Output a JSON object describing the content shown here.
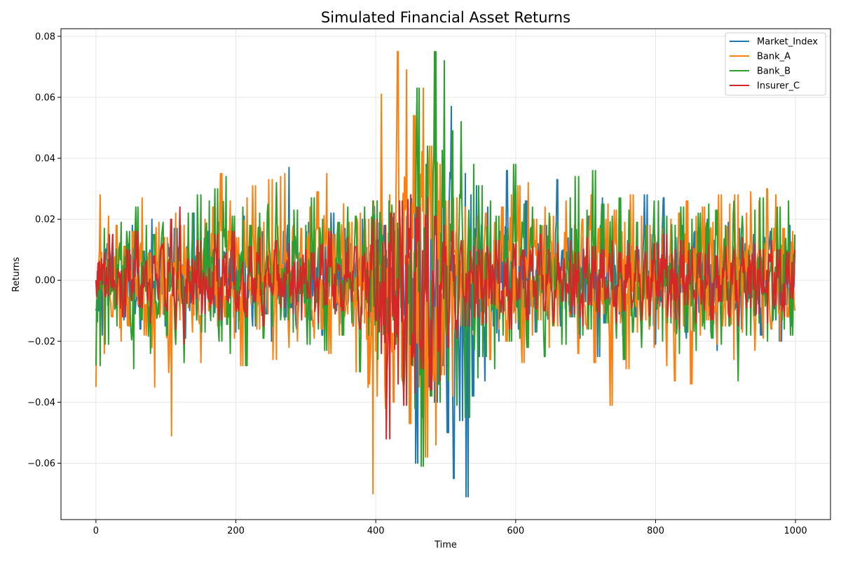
{
  "chart_data": {
    "type": "line",
    "title": "Simulated Financial Asset Returns",
    "xlabel": "Time",
    "ylabel": "Returns",
    "xlim": [
      -50,
      1050
    ],
    "ylim": [
      -0.0785,
      0.0825
    ],
    "xticks": [
      0,
      200,
      400,
      600,
      800,
      1000
    ],
    "xtick_labels": [
      "0",
      "200",
      "400",
      "600",
      "800",
      "1000"
    ],
    "yticks": [
      -0.06,
      -0.04,
      -0.02,
      0.0,
      0.02,
      0.04,
      0.06,
      0.08
    ],
    "ytick_labels": [
      "−0.06",
      "−0.04",
      "−0.02",
      "0.00",
      "0.02",
      "0.04",
      "0.06",
      "0.08"
    ],
    "grid": true,
    "legend_position": "top-right",
    "n_points": 1000,
    "series": [
      {
        "name": "Market_Index",
        "color": "#1f77b4",
        "x_start": 0,
        "x_end": 999,
        "values": [
          -0.01,
          0.006,
          -0.018,
          0.012,
          -0.004,
          0.015,
          -0.009,
          0.003,
          -0.013,
          0.01,
          -0.006,
          0.018,
          -0.011,
          0.004,
          -0.016,
          0.009,
          -0.003,
          0.02,
          -0.012,
          0.006,
          -0.007,
          0.014,
          -0.015,
          0.008,
          -0.002,
          0.017,
          -0.01,
          0.005,
          -0.019,
          0.011,
          -0.005,
          0.022,
          -0.013,
          0.003,
          -0.008,
          0.016,
          -0.012,
          0.007,
          -0.004,
          0.019,
          -0.014,
          0.009,
          -0.006,
          0.013,
          -0.017,
          0.005,
          -0.003,
          0.021,
          -0.01,
          0.008,
          -0.015,
          0.012,
          -0.007,
          0.018,
          -0.011,
          0.004,
          -0.02,
          0.01,
          -0.005,
          0.016,
          -0.012,
          0.037,
          -0.009,
          0.014,
          -0.016,
          0.006,
          -0.004,
          0.019,
          -0.013,
          0.008,
          -0.007,
          0.015,
          -0.018,
          0.011,
          -0.003,
          0.022,
          -0.01,
          0.005,
          -0.014,
          0.017,
          -0.008,
          0.012,
          -0.015,
          0.006,
          -0.011,
          0.02,
          -0.006,
          0.009,
          -0.017,
          0.013,
          -0.004,
          0.018,
          -0.012,
          0.007,
          -0.009,
          0.016,
          -0.014,
          0.01,
          -0.005,
          0.021,
          -0.019,
          0.03,
          -0.06,
          0.025,
          -0.045,
          0.038,
          -0.035,
          0.022,
          -0.04,
          0.031,
          -0.028,
          0.02,
          -0.05,
          0.057,
          -0.065,
          0.018,
          -0.046,
          0.035,
          -0.071,
          0.028,
          -0.038,
          0.031,
          -0.025,
          0.019,
          -0.033,
          0.024,
          -0.015,
          0.013,
          -0.02,
          0.016,
          -0.01,
          0.036,
          -0.012,
          0.009,
          -0.016,
          0.014,
          -0.008,
          0.026,
          -0.011,
          0.006,
          -0.017,
          0.012,
          -0.006,
          0.018,
          -0.013,
          0.009,
          -0.004,
          0.033,
          -0.015,
          0.01,
          -0.008,
          0.017,
          -0.012,
          0.005,
          -0.019,
          0.014,
          -0.007,
          0.021,
          -0.01,
          0.008,
          -0.025,
          0.027,
          -0.014,
          0.011,
          -0.006,
          0.016,
          -0.011,
          0.007,
          -0.018,
          0.013,
          -0.005,
          0.019,
          -0.012,
          0.01,
          -0.016,
          0.028,
          -0.009,
          0.015,
          -0.021,
          0.012,
          -0.007,
          0.027,
          -0.013,
          0.008,
          -0.017,
          0.014,
          -0.004,
          0.018,
          -0.019,
          0.011,
          -0.008,
          0.016,
          -0.015,
          0.009,
          -0.006,
          0.02,
          -0.012,
          0.013,
          -0.023,
          0.01,
          -0.005,
          0.019,
          -0.014,
          0.011,
          -0.009,
          0.017,
          -0.016,
          0.012,
          -0.007,
          0.015,
          -0.011,
          0.008,
          -0.018,
          0.014,
          -0.006,
          0.016,
          -0.013,
          0.01,
          -0.02,
          0.012,
          -0.008,
          0.018,
          -0.015,
          0.014
        ]
      },
      {
        "name": "Bank_A",
        "color": "#ff7f0e",
        "x_start": 0,
        "x_end": 999,
        "values": [
          -0.035,
          0.028,
          -0.024,
          0.021,
          -0.012,
          0.018,
          -0.02,
          0.011,
          -0.015,
          0.016,
          -0.008,
          0.027,
          -0.018,
          0.009,
          -0.035,
          0.019,
          -0.011,
          0.014,
          -0.051,
          0.022,
          -0.013,
          0.018,
          -0.009,
          0.03,
          -0.017,
          0.011,
          -0.027,
          0.02,
          -0.01,
          0.024,
          -0.015,
          0.035,
          -0.012,
          0.026,
          -0.019,
          0.014,
          -0.028,
          0.027,
          -0.008,
          0.031,
          -0.016,
          0.019,
          -0.011,
          0.033,
          -0.026,
          0.034,
          -0.014,
          0.035,
          -0.022,
          0.018,
          -0.02,
          0.017,
          -0.012,
          0.024,
          -0.019,
          0.029,
          -0.016,
          0.035,
          -0.024,
          0.015,
          -0.018,
          0.025,
          -0.011,
          0.019,
          -0.03,
          0.022,
          -0.014,
          0.02,
          -0.07,
          0.047,
          -0.038,
          0.061,
          -0.042,
          0.028,
          -0.04,
          0.075,
          -0.033,
          0.069,
          -0.047,
          0.054,
          -0.035,
          0.063,
          -0.058,
          0.044,
          -0.054,
          0.038,
          -0.031,
          0.026,
          -0.038,
          0.027,
          -0.015,
          0.024,
          -0.02,
          0.017,
          -0.018,
          0.021,
          -0.012,
          0.022,
          -0.026,
          0.019,
          -0.016,
          0.024,
          -0.02,
          0.028,
          -0.014,
          0.031,
          -0.027,
          0.032,
          -0.018,
          0.02,
          -0.013,
          0.024,
          -0.022,
          0.021,
          -0.015,
          0.017,
          -0.019,
          0.026,
          -0.012,
          0.018,
          -0.024,
          0.02,
          -0.016,
          0.028,
          -0.027,
          0.017,
          -0.011,
          0.025,
          -0.041,
          0.023,
          -0.014,
          0.019,
          -0.029,
          0.028,
          -0.017,
          0.021,
          -0.013,
          0.018,
          -0.022,
          0.027,
          -0.016,
          0.017,
          -0.028,
          0.02,
          -0.033,
          0.022,
          -0.015,
          0.026,
          -0.034,
          0.021,
          -0.018,
          0.024,
          -0.013,
          0.019,
          -0.021,
          0.028,
          -0.015,
          0.025,
          -0.026,
          0.028,
          -0.017,
          0.022,
          -0.014,
          0.029,
          -0.023,
          0.026,
          -0.019,
          0.03,
          -0.016,
          0.028,
          -0.02,
          0.017,
          -0.012,
          0.016,
          -0.01
        ]
      },
      {
        "name": "Bank_B",
        "color": "#2ca02c",
        "x_start": 0,
        "x_end": 999,
        "values": [
          -0.028,
          0.017,
          -0.021,
          0.012,
          -0.015,
          0.019,
          -0.01,
          0.016,
          -0.029,
          0.024,
          -0.013,
          0.018,
          -0.024,
          0.015,
          -0.011,
          0.019,
          -0.018,
          0.014,
          -0.021,
          0.018,
          -0.027,
          0.022,
          -0.013,
          0.028,
          -0.017,
          0.026,
          -0.012,
          0.03,
          -0.02,
          0.034,
          -0.024,
          0.021,
          -0.016,
          0.024,
          -0.028,
          0.018,
          -0.014,
          0.022,
          -0.019,
          0.025,
          -0.015,
          0.032,
          -0.013,
          0.02,
          -0.017,
          0.023,
          -0.012,
          0.018,
          -0.021,
          0.027,
          -0.016,
          0.02,
          -0.023,
          0.017,
          -0.011,
          0.019,
          -0.018,
          0.024,
          -0.014,
          0.021,
          -0.03,
          0.024,
          -0.018,
          0.026,
          -0.019,
          0.018,
          -0.015,
          0.022,
          -0.02,
          0.024,
          -0.036,
          0.021,
          -0.042,
          0.063,
          -0.061,
          0.044,
          -0.038,
          0.075,
          -0.04,
          0.072,
          -0.033,
          0.049,
          -0.041,
          0.052,
          -0.045,
          0.038,
          -0.032,
          0.031,
          -0.025,
          0.026,
          -0.029,
          0.021,
          -0.018,
          0.017,
          -0.02,
          0.038,
          -0.019,
          0.025,
          -0.022,
          0.024,
          -0.017,
          0.018,
          -0.025,
          0.022,
          -0.014,
          0.019,
          -0.021,
          0.027,
          -0.012,
          0.034,
          -0.018,
          0.023,
          -0.016,
          0.036,
          -0.022,
          0.025,
          -0.014,
          0.021,
          -0.019,
          0.027,
          -0.026,
          0.023,
          -0.017,
          0.019,
          -0.022,
          0.018,
          -0.015,
          0.026,
          -0.02,
          0.021,
          -0.014,
          0.018,
          -0.024,
          0.024,
          -0.017,
          0.02,
          -0.023,
          0.022,
          -0.016,
          0.025,
          -0.019,
          0.023,
          -0.021,
          0.018,
          -0.015,
          0.026,
          -0.033,
          0.021,
          -0.018,
          0.023,
          -0.014,
          0.027,
          -0.02,
          0.017,
          -0.012,
          0.024,
          -0.016,
          0.026,
          -0.018,
          0.015
        ]
      },
      {
        "name": "Insurer_C",
        "color": "#d62728",
        "x_start": 0,
        "x_end": 999,
        "values": [
          0.0,
          0.009,
          -0.005,
          0.015,
          -0.008,
          0.003,
          -0.012,
          0.01,
          -0.004,
          0.016,
          -0.009,
          0.006,
          -0.014,
          0.008,
          -0.003,
          0.012,
          -0.01,
          0.02,
          -0.016,
          0.024,
          -0.021,
          0.007,
          -0.006,
          0.013,
          -0.011,
          0.004,
          -0.008,
          0.015,
          -0.013,
          0.009,
          -0.005,
          0.016,
          -0.01,
          0.006,
          -0.012,
          0.011,
          -0.007,
          0.014,
          -0.015,
          0.008,
          -0.004,
          0.013,
          -0.009,
          0.012,
          -0.011,
          0.006,
          -0.013,
          0.01,
          -0.006,
          0.009,
          -0.014,
          0.012,
          -0.008,
          0.016,
          -0.011,
          0.005,
          -0.01,
          0.014,
          -0.007,
          0.011,
          -0.016,
          0.009,
          -0.012,
          0.02,
          -0.024,
          0.018,
          -0.052,
          0.022,
          -0.034,
          0.026,
          -0.041,
          0.028,
          -0.037,
          0.024,
          -0.029,
          0.027,
          -0.036,
          0.021,
          -0.033,
          0.018,
          -0.022,
          0.016,
          -0.019,
          0.013,
          -0.015,
          0.011,
          -0.012,
          0.01,
          -0.014,
          0.009,
          -0.008,
          0.013,
          -0.011,
          0.007,
          -0.016,
          0.012,
          -0.006,
          0.01,
          -0.013,
          0.011,
          -0.009,
          0.015,
          -0.01,
          0.008,
          -0.014,
          0.012,
          -0.007,
          0.013,
          -0.011,
          0.009,
          -0.015,
          0.014,
          -0.008,
          0.011,
          -0.012,
          0.01,
          -0.006,
          0.013,
          -0.014,
          0.009,
          -0.01,
          0.012,
          -0.007,
          0.011,
          -0.013,
          0.008,
          -0.011,
          0.012,
          -0.009,
          0.015,
          -0.012,
          0.01,
          -0.016,
          0.013,
          -0.008,
          0.011,
          -0.014,
          0.009,
          -0.01,
          0.012,
          -0.013,
          0.008,
          -0.007,
          0.011,
          -0.012,
          0.01,
          -0.015,
          0.014,
          -0.009,
          0.012,
          -0.011,
          0.01,
          -0.014,
          0.013,
          -0.008,
          0.01,
          -0.012,
          0.009,
          -0.006,
          0.01
        ]
      }
    ]
  }
}
